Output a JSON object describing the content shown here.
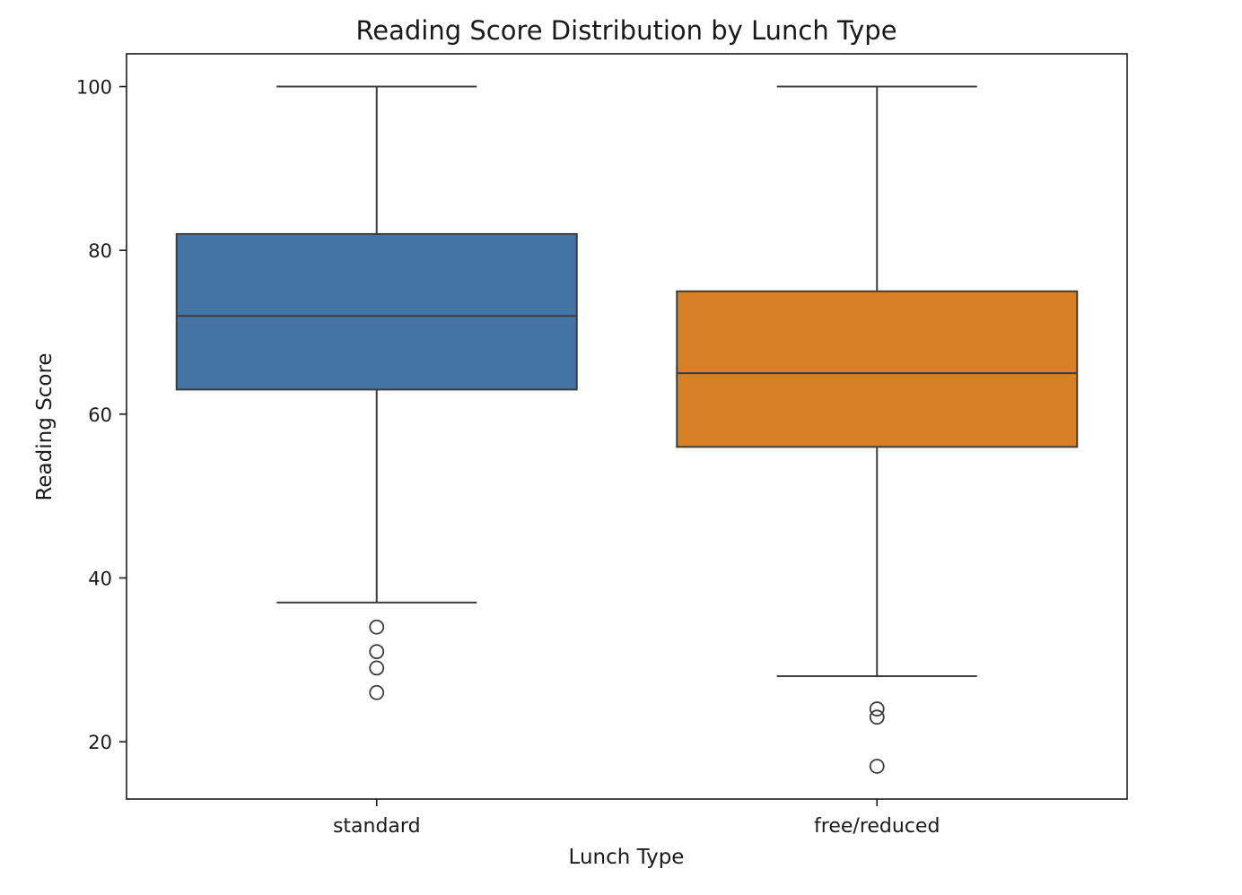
{
  "chart_data": {
    "type": "box",
    "title": "Reading Score Distribution by Lunch Type",
    "xlabel": "Lunch Type",
    "ylabel": "Reading Score",
    "ylim": [
      13,
      104
    ],
    "yticks": [
      20,
      40,
      60,
      80,
      100
    ],
    "grid": false,
    "categories": [
      "standard",
      "free/reduced"
    ],
    "series": [
      {
        "category": "standard",
        "color": "#4374a5",
        "whisker_low": 37,
        "q1": 63,
        "median": 72,
        "q3": 82,
        "whisker_high": 100,
        "outliers": [
          34,
          31,
          29,
          26
        ]
      },
      {
        "category": "free/reduced",
        "color": "#d88026",
        "whisker_low": 28,
        "q1": 56,
        "median": 65,
        "q3": 75,
        "whisker_high": 100,
        "outliers": [
          24,
          23,
          17
        ]
      }
    ]
  }
}
